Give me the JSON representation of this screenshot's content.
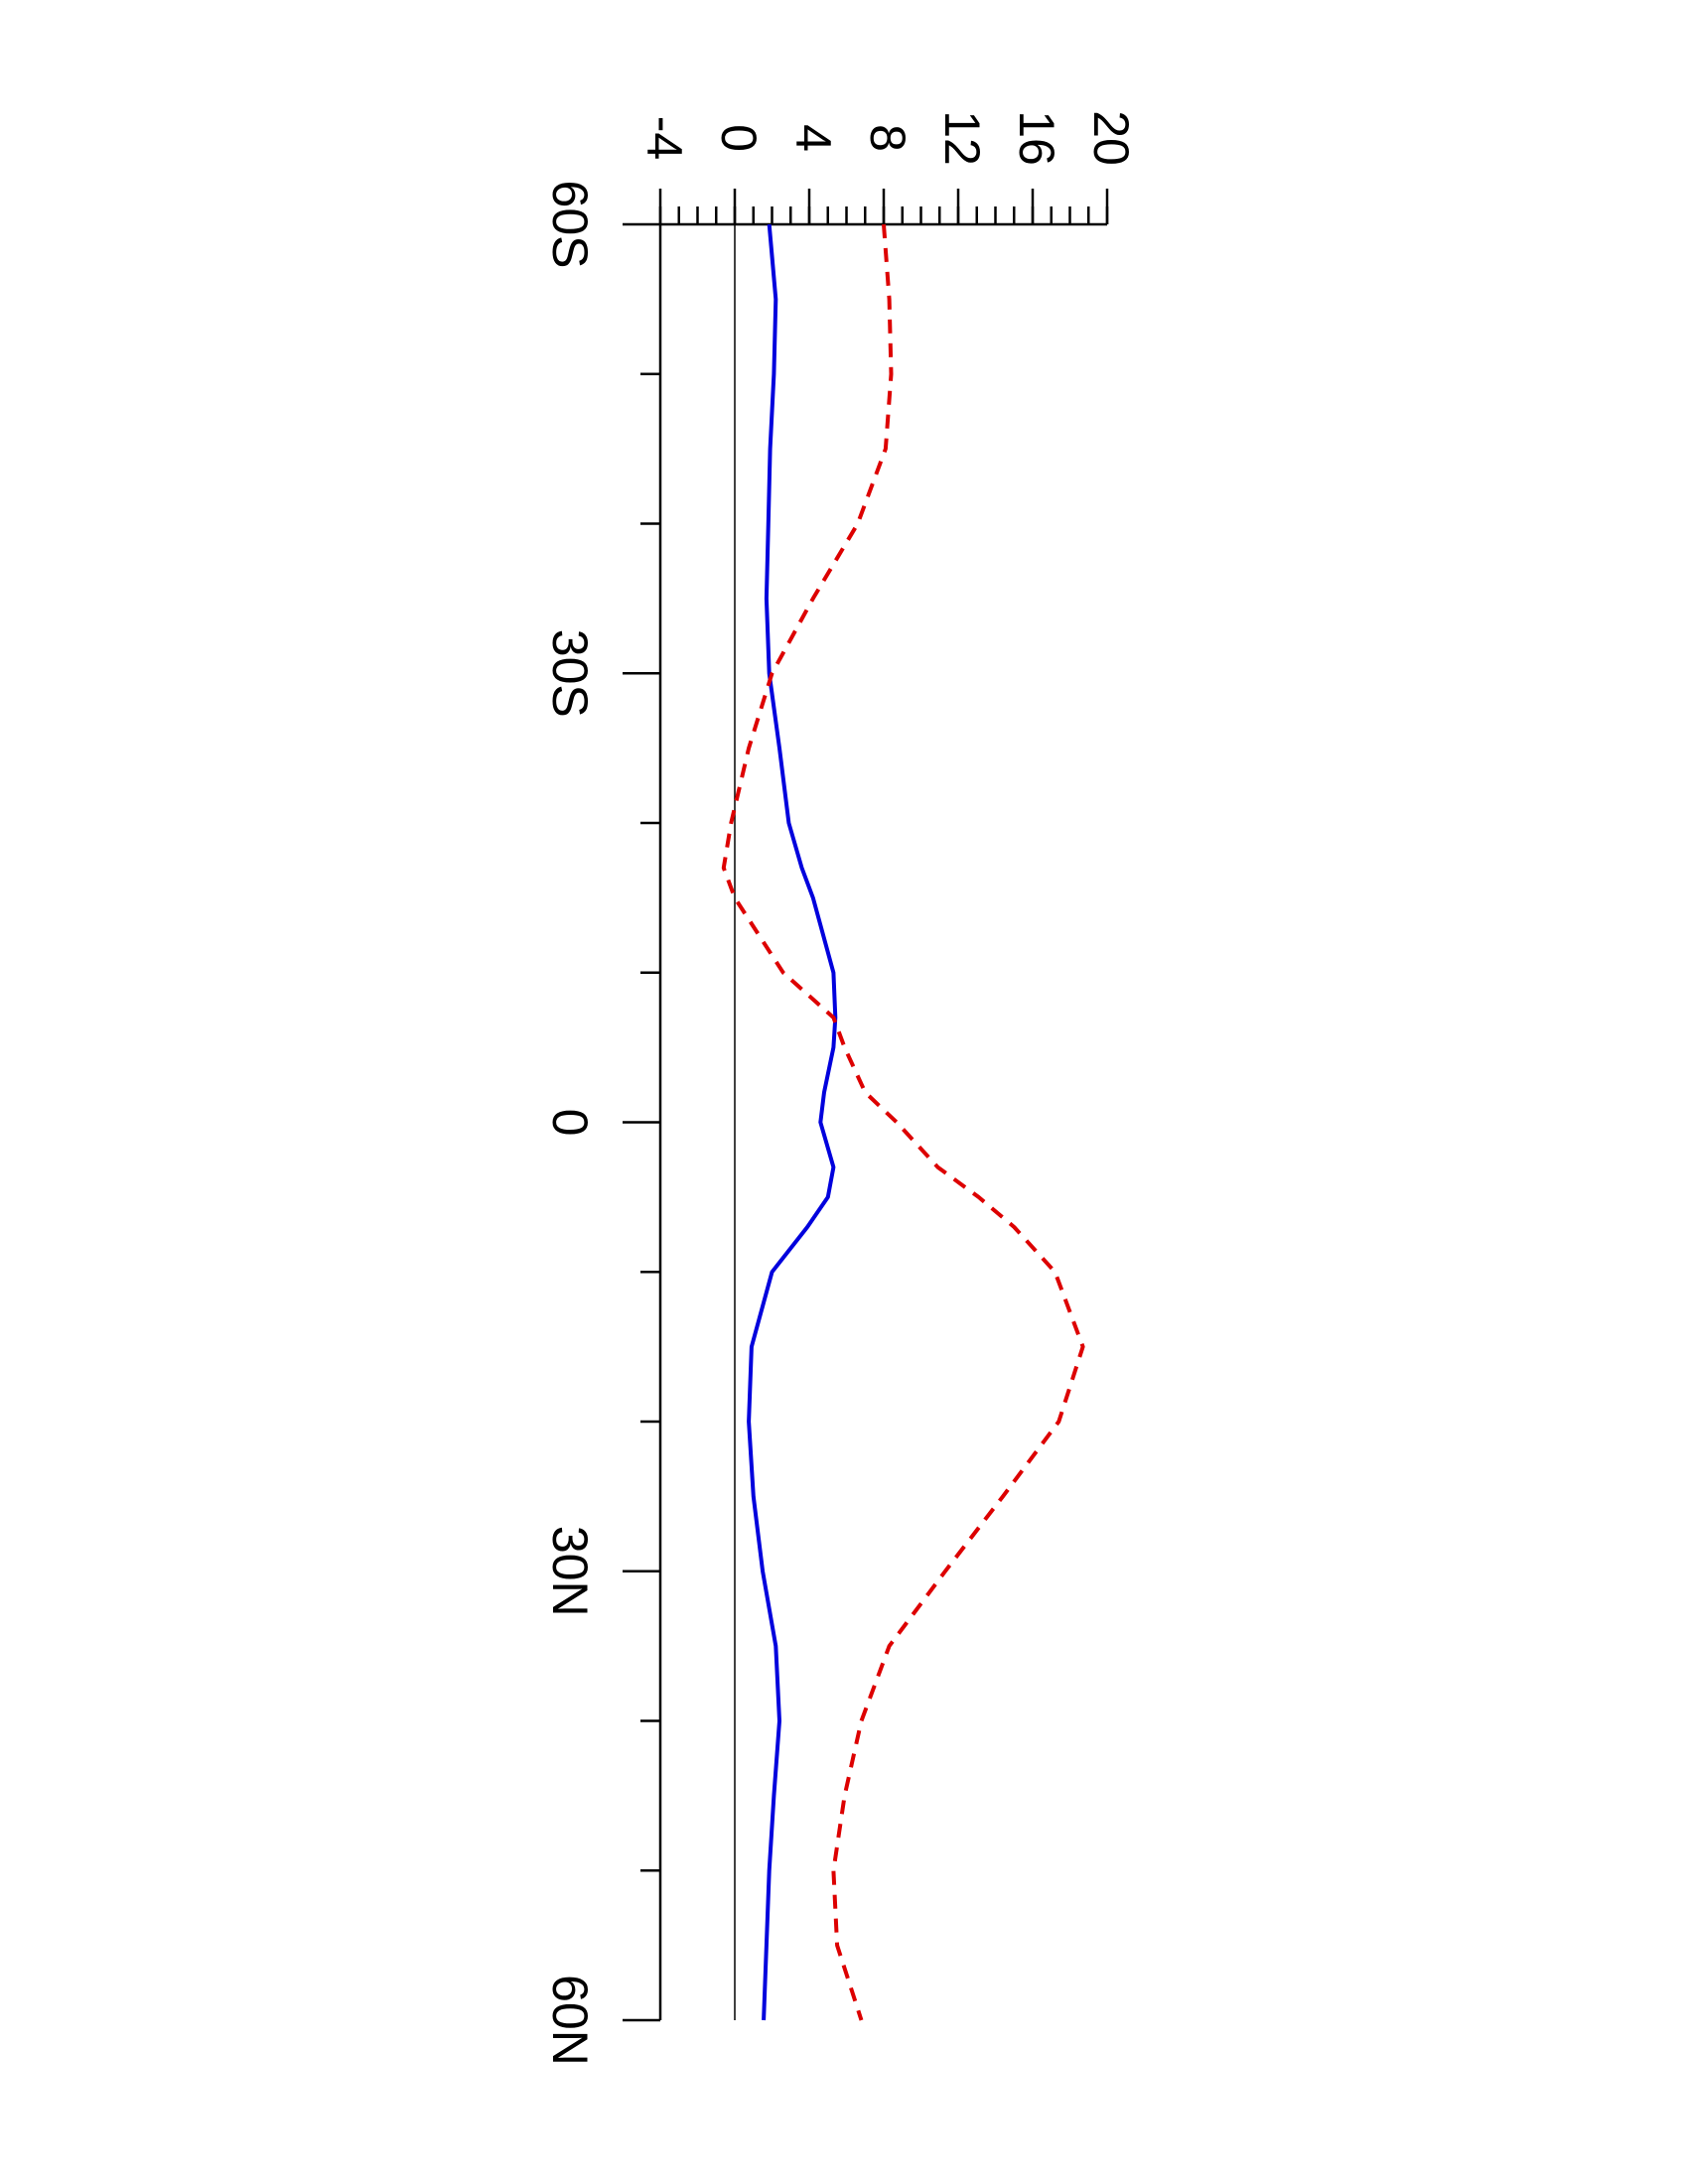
{
  "chart_data": {
    "type": "line",
    "x": [
      -60,
      -55,
      -50,
      -45,
      -40,
      -35,
      -30,
      -25,
      -20,
      -17,
      -15,
      -10,
      -7,
      -5,
      -2,
      0,
      3,
      5,
      7,
      10,
      15,
      20,
      25,
      30,
      35,
      40,
      45,
      50,
      55,
      60
    ],
    "series": [
      {
        "color": "#0000dd",
        "dash": false,
        "values": [
          1.85,
          2.2,
          2.1,
          1.9,
          1.8,
          1.7,
          1.85,
          2.4,
          2.9,
          3.6,
          4.2,
          5.3,
          5.4,
          5.3,
          4.8,
          4.6,
          5.3,
          5.0,
          3.9,
          2.0,
          0.9,
          0.75,
          1.0,
          1.5,
          2.2,
          2.4,
          2.1,
          1.85,
          1.7,
          1.55
        ]
      },
      {
        "color": "#dd0000",
        "dash": true,
        "values": [
          8.0,
          8.3,
          8.4,
          8.1,
          6.6,
          4.2,
          2.0,
          0.75,
          -0.2,
          -0.6,
          0,
          2.6,
          5.3,
          5.9,
          7.0,
          8.7,
          10.9,
          13.1,
          15.0,
          17.2,
          18.7,
          17.4,
          14.4,
          11.3,
          8.3,
          6.8,
          5.9,
          5.3,
          5.5,
          6.8
        ]
      }
    ],
    "xlim": [
      -60,
      60
    ],
    "xticks": [
      {
        "value": -60,
        "label": "60S"
      },
      {
        "value": -30,
        "label": "30S"
      },
      0,
      {
        "value": 30,
        "label": "30N"
      },
      {
        "value": 60,
        "label": "60N"
      }
    ],
    "xminorticks": [
      -50,
      -40,
      -20,
      -10,
      10,
      20,
      40,
      50
    ],
    "ylim": [
      -4,
      20
    ],
    "yticks": [
      -4,
      0,
      4,
      8,
      12,
      16,
      20
    ],
    "yminorstep": 1,
    "zero_line": true,
    "rotated": true
  }
}
